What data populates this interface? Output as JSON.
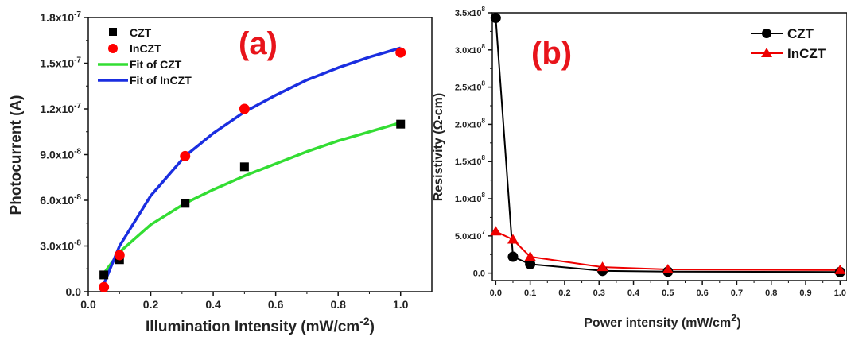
{
  "chart_data": [
    {
      "type": "scatter",
      "panel_label": "(a)",
      "xlabel": "Illumination Intensity (mW/cm",
      "xlabel_sup": "-2",
      "xlabel_end": ")",
      "ylabel": "Photocurrent (A)",
      "xlim": [
        0.0,
        1.1
      ],
      "ylim": [
        0.0,
        1.8e-07
      ],
      "x_ticks": [
        "0.0",
        "0.2",
        "0.4",
        "0.6",
        "0.8",
        "1.0"
      ],
      "y_ticks": [
        "0.0",
        "3.0x10",
        "6.0x10",
        "9.0x10",
        "1.2x10",
        "1.5x10",
        "1.8x10"
      ],
      "y_tick_exps": [
        "",
        "-8",
        "-8",
        "-8",
        "-7",
        "-7",
        "-7"
      ],
      "legend_position": "top-left",
      "series": [
        {
          "name": "CZT",
          "marker": "square",
          "color": "#000000",
          "x": [
            0.05,
            0.1,
            0.31,
            0.5,
            1.0
          ],
          "y": [
            1.1e-08,
            2.1e-08,
            5.8e-08,
            8.2e-08,
            1.1e-07
          ]
        },
        {
          "name": "InCZT",
          "marker": "circle",
          "color": "#ff0000",
          "x": [
            0.05,
            0.1,
            0.31,
            0.5,
            1.0
          ],
          "y": [
            3e-09,
            2.4e-08,
            8.9e-08,
            1.2e-07,
            1.57e-07
          ]
        },
        {
          "name": "Fit of CZT",
          "line": true,
          "color": "#33dd33",
          "x": [
            0.05,
            0.1,
            0.2,
            0.31,
            0.4,
            0.5,
            0.6,
            0.7,
            0.8,
            0.9,
            1.0
          ],
          "y": [
            1.2e-08,
            2.6e-08,
            4.4e-08,
            5.8e-08,
            6.7e-08,
            7.6e-08,
            8.4e-08,
            9.2e-08,
            9.9e-08,
            1.05e-07,
            1.11e-07
          ]
        },
        {
          "name": "Fit of InCZT",
          "line": true,
          "color": "#1a2ee0",
          "x": [
            0.05,
            0.1,
            0.2,
            0.31,
            0.4,
            0.5,
            0.6,
            0.7,
            0.8,
            0.9,
            1.0
          ],
          "y": [
            5e-09,
            3e-08,
            6.3e-08,
            8.9e-08,
            1.04e-07,
            1.18e-07,
            1.29e-07,
            1.39e-07,
            1.47e-07,
            1.54e-07,
            1.6e-07
          ]
        }
      ]
    },
    {
      "type": "line",
      "panel_label": "(b)",
      "xlabel": "Power intensity (mW/cm",
      "xlabel_sup": "2",
      "xlabel_end": ")",
      "ylabel": "Resistivity (Ω-cm)",
      "xlim": [
        -0.01,
        1.02
      ],
      "ylim": [
        -10000000.0,
        350000000.0
      ],
      "x_ticks": [
        "0.0",
        "0.1",
        "0.2",
        "0.3",
        "0.4",
        "0.5",
        "0.6",
        "0.7",
        "0.8",
        "0.9",
        "1.0"
      ],
      "y_ticks": [
        "0.0",
        "5.0x10",
        "1.0x10",
        "1.5x10",
        "2.0x10",
        "2.5x10",
        "3.0x10",
        "3.5x10"
      ],
      "y_tick_exps": [
        "",
        "7",
        "8",
        "8",
        "8",
        "8",
        "8",
        "8"
      ],
      "legend_position": "top-right",
      "series": [
        {
          "name": "CZT",
          "marker": "circle",
          "color": "#000000",
          "x": [
            0.0,
            0.05,
            0.1,
            0.31,
            0.5,
            1.0
          ],
          "y": [
            343000000.0,
            22000000.0,
            12000000.0,
            3000000.0,
            2000000.0,
            1500000.0
          ]
        },
        {
          "name": "InCZT",
          "marker": "triangle",
          "color": "#ee0000",
          "x": [
            0.0,
            0.05,
            0.1,
            0.31,
            0.5,
            1.0
          ],
          "y": [
            56000000.0,
            45000000.0,
            22000000.0,
            8000000.0,
            5000000.0,
            4000000.0
          ]
        }
      ]
    }
  ]
}
